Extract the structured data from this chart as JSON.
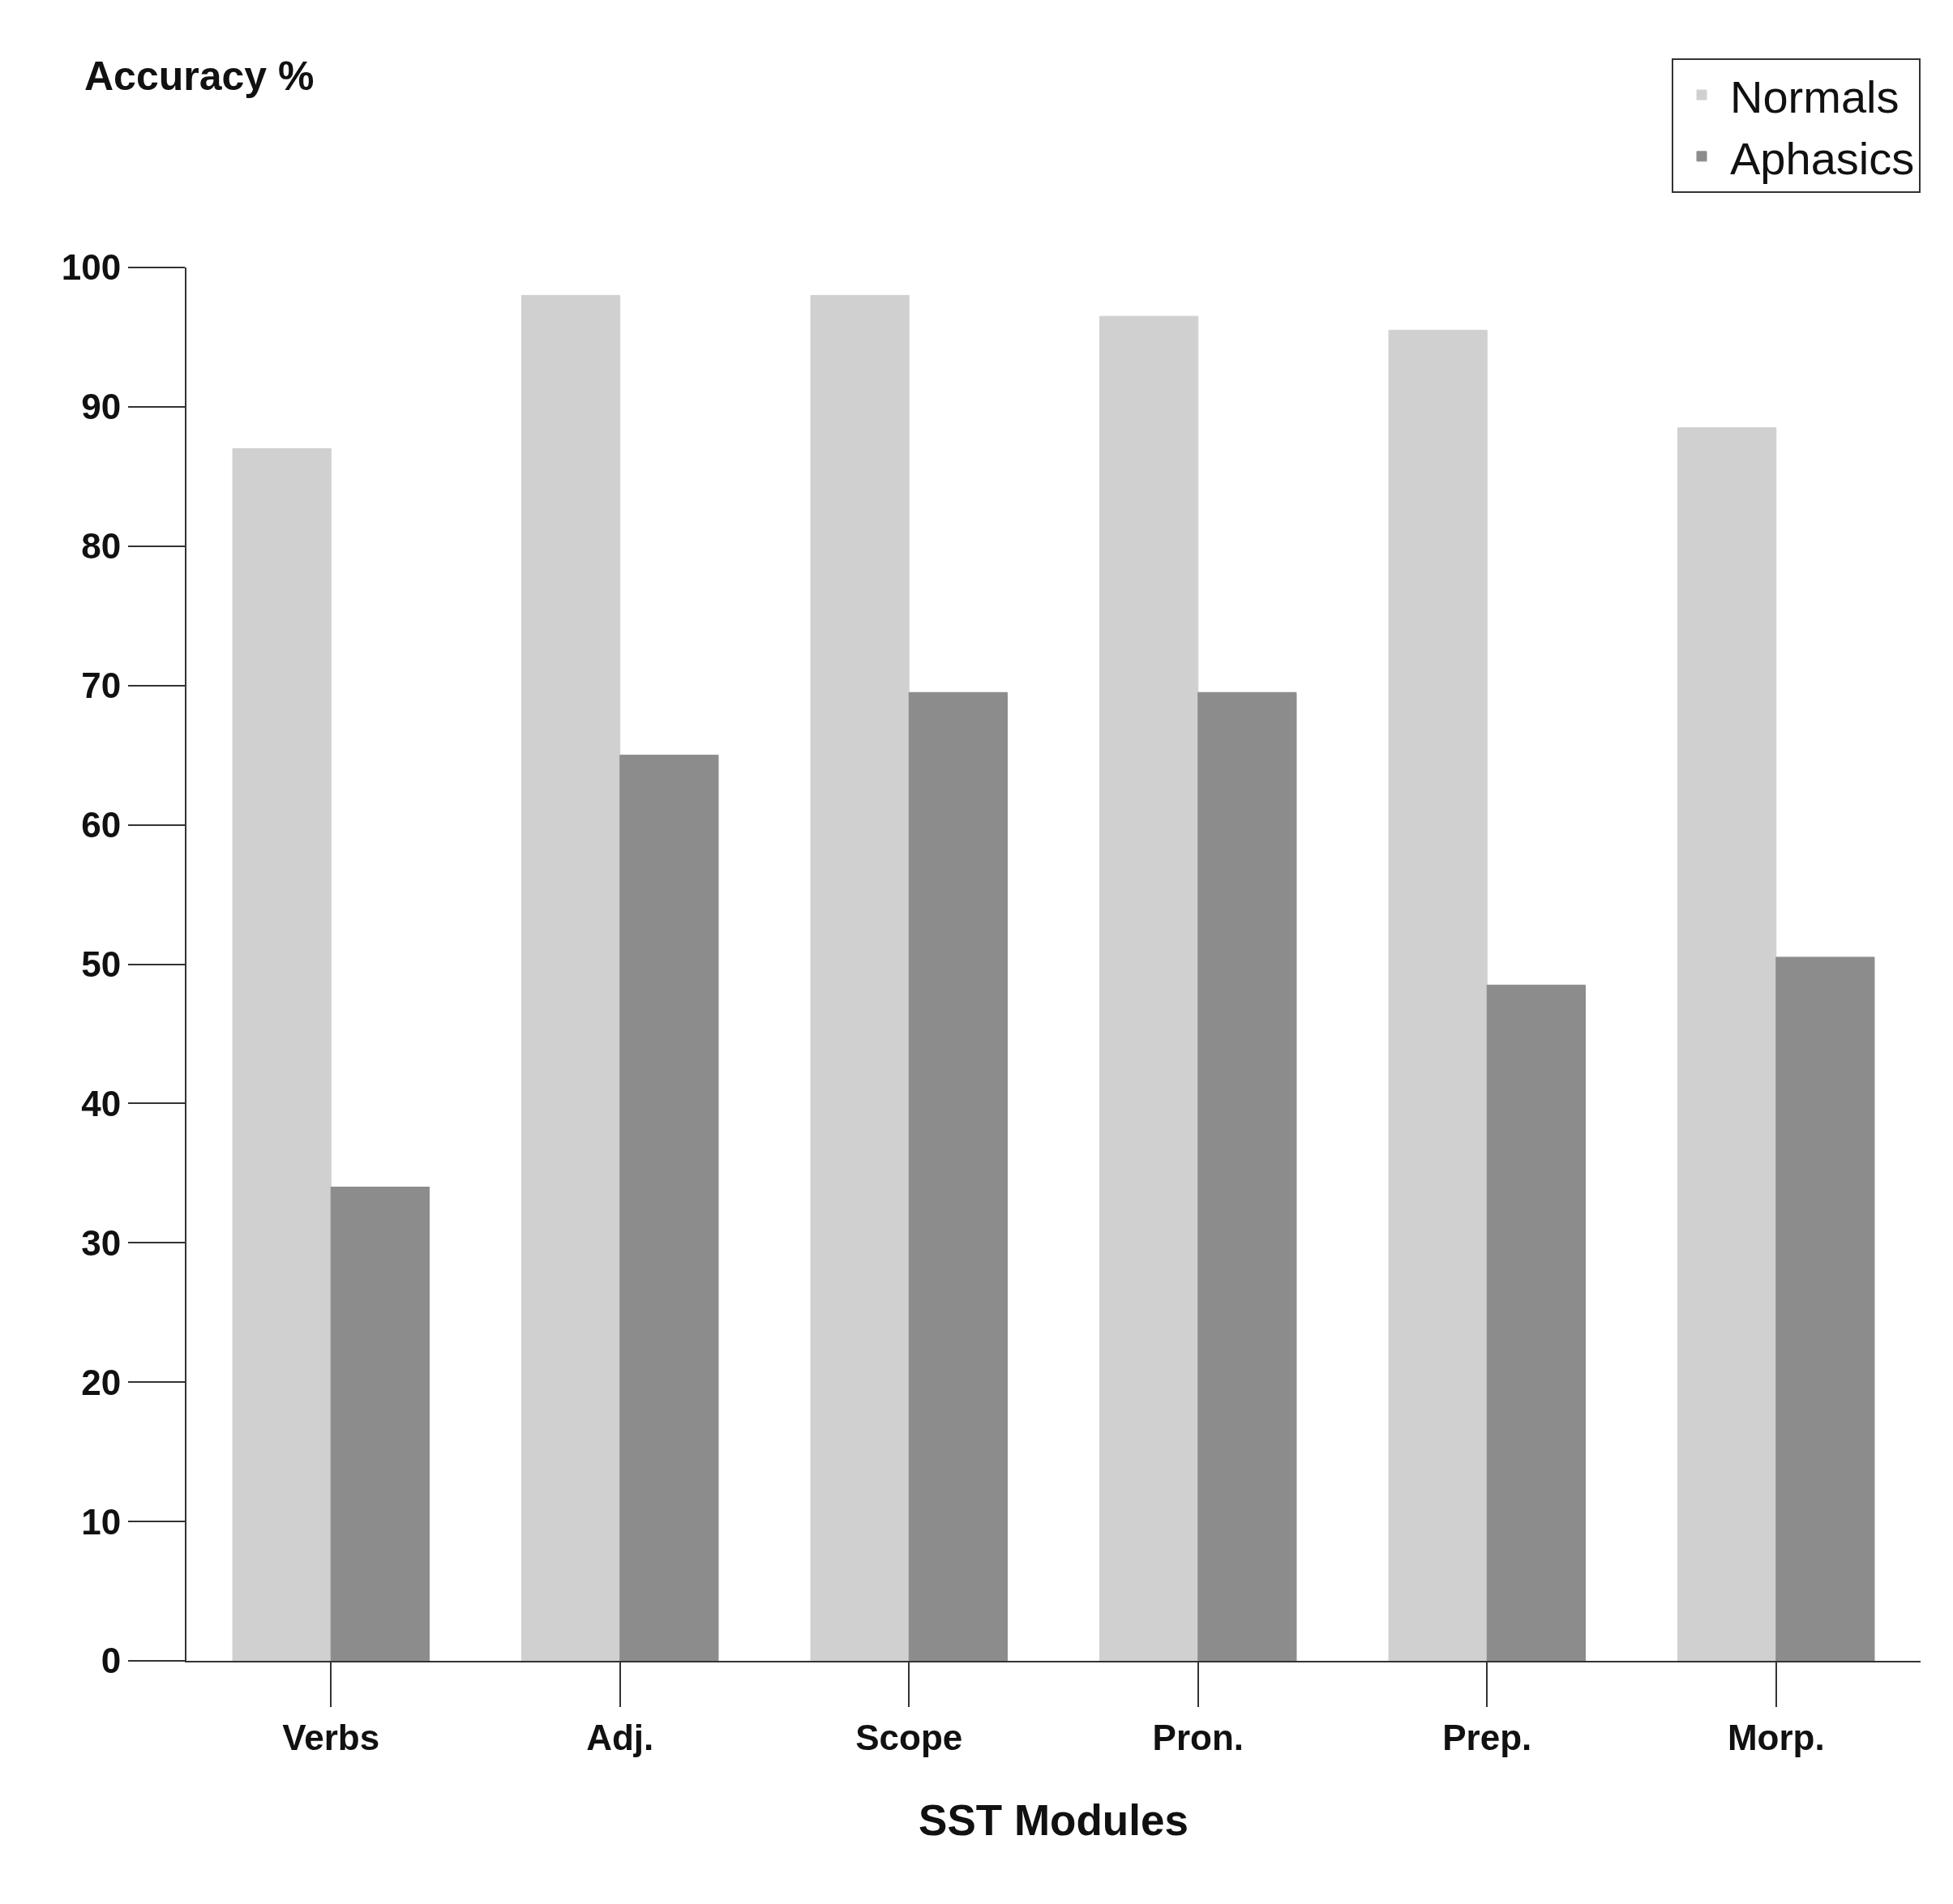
{
  "chart_data": {
    "type": "bar",
    "xlabel": "SST Modules",
    "ylabel": "Accuracy %",
    "categories": [
      "Verbs",
      "Adj.",
      "Scope",
      "Pron.",
      "Prep.",
      "Morp."
    ],
    "series": [
      {
        "name": "Normals",
        "color": "#d0d0d0",
        "values": [
          87,
          98,
          98,
          96.5,
          95.5,
          88.5
        ]
      },
      {
        "name": "Aphasics",
        "color": "#8c8c8c",
        "values": [
          34,
          65,
          69.5,
          69.5,
          48.5,
          50.5
        ]
      }
    ],
    "ylim": [
      0,
      100
    ],
    "yticks": [
      0,
      10,
      20,
      30,
      40,
      50,
      60,
      70,
      80,
      90,
      100
    ],
    "legend": "top right"
  }
}
